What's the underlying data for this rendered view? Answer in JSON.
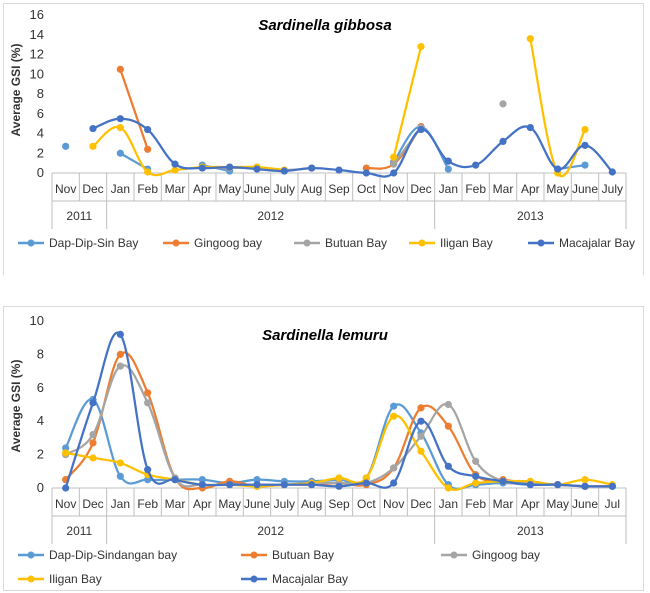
{
  "chart_data": [
    {
      "type": "line",
      "title": "Sardinella gibbosa",
      "ylabel": "Average GSI (%)",
      "xlabel": "",
      "ylim": [
        0,
        16
      ],
      "yticks": [
        0,
        2,
        4,
        6,
        8,
        10,
        12,
        14,
        16
      ],
      "grid": false,
      "legend_position": "bottom",
      "categories": [
        "Nov",
        "Dec",
        "Jan",
        "Feb",
        "Mar",
        "Apr",
        "May",
        "June",
        "July",
        "Aug",
        "Sep",
        "Oct",
        "Nov",
        "Dec",
        "Jan",
        "Feb",
        "Mar",
        "Apr",
        "May",
        "June",
        "July"
      ],
      "year_groups": [
        {
          "label": "2011",
          "start": 0,
          "end": 1
        },
        {
          "label": "2012",
          "start": 2,
          "end": 13
        },
        {
          "label": "2013",
          "start": 14,
          "end": 20
        }
      ],
      "series": [
        {
          "name": "Dap-Dip-Sin Bay",
          "color": "#5b9bd5",
          "values": [
            2.7,
            null,
            2.0,
            0.4,
            null,
            0.8,
            0.2,
            null,
            null,
            null,
            null,
            null,
            1.1,
            4.7,
            0.4,
            null,
            null,
            null,
            0.4,
            0.8,
            null
          ]
        },
        {
          "name": "Gingoog bay",
          "color": "#ed7d31",
          "values": [
            null,
            null,
            10.5,
            2.4,
            null,
            null,
            null,
            null,
            null,
            null,
            null,
            0.5,
            0.9,
            4.7,
            null,
            null,
            null,
            null,
            null,
            null,
            null
          ]
        },
        {
          "name": "Butuan Bay",
          "color": "#a5a5a5",
          "values": [
            null,
            null,
            null,
            null,
            null,
            0.6,
            0.5,
            0.6,
            0.3,
            0.5,
            null,
            null,
            0.9,
            4.6,
            null,
            null,
            7.0,
            null,
            null,
            null,
            null
          ]
        },
        {
          "name": "Iligan Bay",
          "color": "#ffc000",
          "values": [
            null,
            2.7,
            4.6,
            0.1,
            0.3,
            0.6,
            0.6,
            0.6,
            0.3,
            null,
            null,
            null,
            1.6,
            12.8,
            null,
            null,
            null,
            13.6,
            0.0,
            4.4,
            null
          ]
        },
        {
          "name": "Macajalar Bay",
          "color": "#4472c4",
          "values": [
            null,
            4.5,
            5.5,
            4.4,
            0.9,
            0.5,
            0.6,
            0.4,
            0.2,
            0.5,
            0.3,
            0.0,
            0.0,
            4.4,
            1.2,
            0.8,
            3.2,
            4.6,
            0.4,
            2.8,
            0.1
          ]
        }
      ]
    },
    {
      "type": "line",
      "title": "Sardinella lemuru",
      "ylabel": "Average GSI (%)",
      "xlabel": "",
      "ylim": [
        0,
        10
      ],
      "yticks": [
        0,
        2,
        4,
        6,
        8,
        10
      ],
      "grid": false,
      "legend_position": "bottom",
      "categories": [
        "Nov",
        "Dec",
        "Jan",
        "Feb",
        "Mar",
        "Apr",
        "May",
        "June",
        "July",
        "Aug",
        "Sep",
        "Oct",
        "Nov",
        "Dec",
        "Jan",
        "Feb",
        "Mar",
        "Apr",
        "May",
        "June",
        "Jul"
      ],
      "year_groups": [
        {
          "label": "2011",
          "start": 0,
          "end": 1
        },
        {
          "label": "2012",
          "start": 2,
          "end": 13
        },
        {
          "label": "2013",
          "start": 14,
          "end": 20
        }
      ],
      "series": [
        {
          "name": "Dap-Dip-Sindangan bay",
          "color": "#5b9bd5",
          "values": [
            2.4,
            5.3,
            0.7,
            0.5,
            0.5,
            0.5,
            0.3,
            0.5,
            0.4,
            0.4,
            0.5,
            0.6,
            4.9,
            3.3,
            0.2,
            0.2,
            0.3,
            0.2,
            0.2,
            0.1,
            0.1
          ]
        },
        {
          "name": "Butuan Bay",
          "color": "#ed7d31",
          "values": [
            0.5,
            2.7,
            8.0,
            5.7,
            0.6,
            0.0,
            0.4,
            0.1,
            0.2,
            0.2,
            0.3,
            0.2,
            1.2,
            4.8,
            3.7,
            0.8,
            0.5,
            0.3,
            0.2,
            0.1,
            0.1
          ]
        },
        {
          "name": "Gingoog bay",
          "color": "#a5a5a5",
          "values": [
            2.0,
            3.2,
            7.3,
            5.1,
            0.6,
            0.2,
            0.2,
            0.2,
            0.2,
            0.3,
            0.3,
            0.3,
            1.2,
            3.1,
            5.0,
            1.6,
            0.4,
            0.3,
            0.2,
            0.1,
            0.1
          ]
        },
        {
          "name": "Iligan Bay",
          "color": "#ffc000",
          "values": [
            2.1,
            1.8,
            1.5,
            0.8,
            0.5,
            0.2,
            0.2,
            0.1,
            0.2,
            0.3,
            0.6,
            0.6,
            4.3,
            2.2,
            0.0,
            0.3,
            0.4,
            0.4,
            0.2,
            0.5,
            0.2
          ]
        },
        {
          "name": "Macajalar Bay",
          "color": "#4472c4",
          "values": [
            0.0,
            5.1,
            9.2,
            1.1,
            0.5,
            0.2,
            0.2,
            0.2,
            0.2,
            0.2,
            0.1,
            0.3,
            0.3,
            4.0,
            1.3,
            0.7,
            0.4,
            0.2,
            0.2,
            0.1,
            0.1
          ]
        }
      ]
    }
  ]
}
